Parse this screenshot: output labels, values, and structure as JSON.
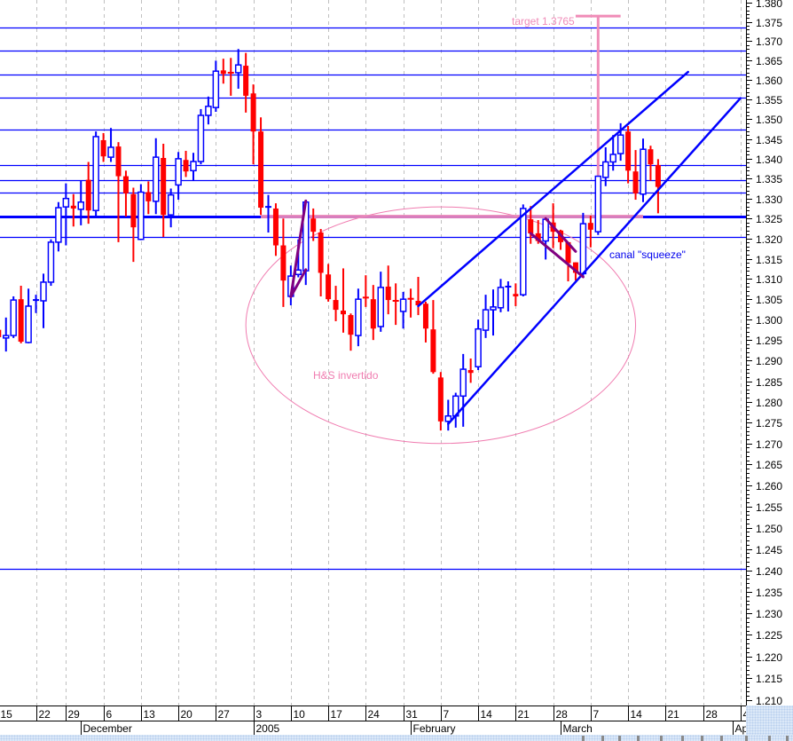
{
  "chart_data": {
    "type": "candlestick",
    "title": "",
    "xlabel": "",
    "ylabel": "",
    "yscale": "log",
    "ylim": [
      1.21,
      1.38
    ],
    "y_tick_step": 0.005,
    "y_minor_tick_step": 0.001,
    "grid": {
      "vertical_weekly_dashed": true,
      "horizontal": false
    },
    "colors": {
      "up": "#0000ff",
      "down": "#ff0000",
      "levels": "#0000ff",
      "annotation_pink": "#f08cb8",
      "annotation_purple": "#800080",
      "grid": "#c0c0c0"
    },
    "candle_fields": [
      "date",
      "open",
      "high",
      "low",
      "close"
    ],
    "candles": [
      [
        "2004-11-15",
        1.2975,
        1.2985,
        1.295,
        1.2957
      ],
      [
        "2004-11-16",
        1.2955,
        1.3005,
        1.2922,
        1.2961
      ],
      [
        "2004-11-17",
        1.2961,
        1.3057,
        1.2955,
        1.3048
      ],
      [
        "2004-11-18",
        1.305,
        1.3083,
        1.2942,
        1.2946
      ],
      [
        "2004-11-19",
        1.2944,
        1.3076,
        1.2942,
        1.3033
      ],
      [
        "2004-11-22",
        1.3046,
        1.3061,
        1.3016,
        1.3048
      ],
      [
        "2004-11-23",
        1.3046,
        1.3113,
        1.2979,
        1.3092
      ],
      [
        "2004-11-24",
        1.3092,
        1.3198,
        1.3083,
        1.3191
      ],
      [
        "2004-11-26",
        1.3191,
        1.3291,
        1.3168,
        1.3277
      ],
      [
        "2004-11-29",
        1.3279,
        1.3338,
        1.3183,
        1.33
      ],
      [
        "2004-11-30",
        1.3282,
        1.3311,
        1.323,
        1.3275
      ],
      [
        "2004-12-01",
        1.3273,
        1.3345,
        1.3233,
        1.3291
      ],
      [
        "2004-12-02",
        1.3347,
        1.3392,
        1.3237,
        1.327
      ],
      [
        "2004-12-03",
        1.327,
        1.3469,
        1.3255,
        1.3456
      ],
      [
        "2004-12-06",
        1.3447,
        1.3465,
        1.3392,
        1.3406
      ],
      [
        "2004-12-07",
        1.3404,
        1.3478,
        1.3392,
        1.3429
      ],
      [
        "2004-12-08",
        1.3431,
        1.3442,
        1.3191,
        1.3356
      ],
      [
        "2004-12-09",
        1.3356,
        1.337,
        1.3255,
        1.3313
      ],
      [
        "2004-12-10",
        1.3311,
        1.3327,
        1.3142,
        1.3228
      ],
      [
        "2004-12-13",
        1.3198,
        1.3336,
        1.3196,
        1.3316
      ],
      [
        "2004-12-14",
        1.3316,
        1.3343,
        1.3261,
        1.3293
      ],
      [
        "2004-12-15",
        1.3293,
        1.3452,
        1.3261,
        1.3404
      ],
      [
        "2004-12-16",
        1.3402,
        1.3438,
        1.3204,
        1.3259
      ],
      [
        "2004-12-17",
        1.3259,
        1.3325,
        1.3228,
        1.3309
      ],
      [
        "2004-12-20",
        1.3334,
        1.3417,
        1.3297,
        1.34
      ],
      [
        "2004-12-21",
        1.3397,
        1.342,
        1.3354,
        1.3368
      ],
      [
        "2004-12-22",
        1.337,
        1.3415,
        1.3345,
        1.3393
      ],
      [
        "2004-12-23",
        1.3393,
        1.3526,
        1.3386,
        1.351
      ],
      [
        "2004-12-24",
        1.351,
        1.3558,
        1.3487,
        1.3533
      ],
      [
        "2004-12-27",
        1.353,
        1.365,
        1.3519,
        1.3623
      ],
      [
        "2004-12-28",
        1.3625,
        1.3655,
        1.3591,
        1.3616
      ],
      [
        "2004-12-29",
        1.3619,
        1.3657,
        1.356,
        1.3617
      ],
      [
        "2004-12-30",
        1.3619,
        1.368,
        1.3578,
        1.3639
      ],
      [
        "2004-12-31",
        1.3637,
        1.367,
        1.3517,
        1.356
      ],
      [
        "2005-01-03",
        1.3566,
        1.3589,
        1.3386,
        1.3469
      ],
      [
        "2005-01-04",
        1.3469,
        1.3505,
        1.3259,
        1.3277
      ],
      [
        "2005-01-05",
        1.3275,
        1.3309,
        1.3215,
        1.3279
      ],
      [
        "2005-01-06",
        1.3275,
        1.3288,
        1.3157,
        1.3183
      ],
      [
        "2005-01-07",
        1.3183,
        1.325,
        1.3031,
        1.3096
      ],
      [
        "2005-01-10",
        1.3057,
        1.3133,
        1.3035,
        1.3107
      ],
      [
        "2005-01-11",
        1.3111,
        1.3198,
        1.3104,
        1.3122
      ],
      [
        "2005-01-12",
        1.312,
        1.3297,
        1.3085,
        1.3291
      ],
      [
        "2005-01-13",
        1.325,
        1.3275,
        1.3194,
        1.3217
      ],
      [
        "2005-01-14",
        1.3215,
        1.3224,
        1.3057,
        1.3115
      ],
      [
        "2005-01-17",
        1.3111,
        1.3137,
        1.3044,
        1.305
      ],
      [
        "2005-01-18",
        1.3048,
        1.3083,
        1.2996,
        1.3024
      ],
      [
        "2005-01-19",
        1.3022,
        1.3126,
        1.2968,
        1.3013
      ],
      [
        "2005-01-20",
        1.3011,
        1.3015,
        1.2924,
        1.2963
      ],
      [
        "2005-01-21",
        1.2961,
        1.3076,
        1.2935,
        1.305
      ],
      [
        "2005-01-24",
        1.3054,
        1.3109,
        1.3031,
        1.3052
      ],
      [
        "2005-01-25",
        1.305,
        1.3085,
        1.295,
        1.2978
      ],
      [
        "2005-01-26",
        1.2983,
        1.3118,
        1.297,
        1.3079
      ],
      [
        "2005-01-27",
        1.3081,
        1.3133,
        1.3013,
        1.3048
      ],
      [
        "2005-01-28",
        1.3046,
        1.3089,
        1.2987,
        1.3044
      ],
      [
        "2005-01-31",
        1.302,
        1.3068,
        1.2978,
        1.305
      ],
      [
        "2005-02-01",
        1.3051,
        1.3076,
        1.3005,
        1.305
      ],
      [
        "2005-02-02",
        1.3046,
        1.3105,
        1.3011,
        1.3035
      ],
      [
        "2005-02-03",
        1.3039,
        1.3044,
        1.2944,
        1.2978
      ],
      [
        "2005-02-04",
        1.2976,
        1.3048,
        1.2868,
        1.2872
      ],
      [
        "2005-02-07",
        1.2859,
        1.2872,
        1.2731,
        1.2753
      ],
      [
        "2005-02-08",
        1.2753,
        1.2805,
        1.2731,
        1.2766
      ],
      [
        "2005-02-09",
        1.2766,
        1.2822,
        1.2738,
        1.2814
      ],
      [
        "2005-02-10",
        1.2814,
        1.2916,
        1.274,
        1.2879
      ],
      [
        "2005-02-11",
        1.2877,
        1.2905,
        1.2846,
        1.287
      ],
      [
        "2005-02-14",
        1.2885,
        1.3,
        1.2877,
        1.2977
      ],
      [
        "2005-02-15",
        1.2974,
        1.3061,
        1.2955,
        1.3024
      ],
      [
        "2005-02-16",
        1.3024,
        1.3074,
        1.2961,
        1.3031
      ],
      [
        "2005-02-17",
        1.3029,
        1.31,
        1.3018,
        1.3079
      ],
      [
        "2005-02-18",
        1.308,
        1.3094,
        1.302,
        1.3081
      ],
      [
        "2005-02-21",
        1.3063,
        1.3089,
        1.3033,
        1.3057
      ],
      [
        "2005-02-22",
        1.3061,
        1.3285,
        1.3057,
        1.3275
      ],
      [
        "2005-02-23",
        1.3248,
        1.3281,
        1.3187,
        1.3213
      ],
      [
        "2005-02-24",
        1.3213,
        1.3246,
        1.3187,
        1.3194
      ],
      [
        "2005-02-25",
        1.3194,
        1.3252,
        1.3148,
        1.3248
      ],
      [
        "2005-02-28",
        1.324,
        1.3288,
        1.3176,
        1.3217
      ],
      [
        "2005-03-01",
        1.322,
        1.3222,
        1.3172,
        1.3191
      ],
      [
        "2005-03-02",
        1.3191,
        1.3191,
        1.3094,
        1.3139
      ],
      [
        "2005-03-03",
        1.3141,
        1.3141,
        1.3096,
        1.3115
      ],
      [
        "2005-03-04",
        1.3113,
        1.3264,
        1.3104,
        1.3237
      ],
      [
        "2005-03-07",
        1.3239,
        1.3257,
        1.3178,
        1.3222
      ],
      [
        "2005-03-08",
        1.3217,
        1.3356,
        1.3209,
        1.3356
      ],
      [
        "2005-03-09",
        1.3353,
        1.3429,
        1.3331,
        1.3392
      ],
      [
        "2005-03-10",
        1.3392,
        1.346,
        1.337,
        1.3411
      ],
      [
        "2005-03-11",
        1.3413,
        1.349,
        1.3395,
        1.346
      ],
      [
        "2005-03-14",
        1.3469,
        1.3483,
        1.3338,
        1.337
      ],
      [
        "2005-03-15",
        1.3368,
        1.3422,
        1.3297,
        1.3313
      ],
      [
        "2005-03-16",
        1.3311,
        1.3451,
        1.3291,
        1.3424
      ],
      [
        "2005-03-17",
        1.3424,
        1.3433,
        1.3345,
        1.3386
      ],
      [
        "2005-03-18",
        1.3384,
        1.3399,
        1.3263,
        1.3329
      ]
    ],
    "x_ticks": [
      {
        "label": "15",
        "date": "2004-11-15"
      },
      {
        "label": "22",
        "date": "2004-11-22"
      },
      {
        "label": "29",
        "date": "2004-11-29"
      },
      {
        "label": "6",
        "date": "2004-12-06"
      },
      {
        "label": "13",
        "date": "2004-12-13"
      },
      {
        "label": "20",
        "date": "2004-12-20"
      },
      {
        "label": "27",
        "date": "2004-12-27"
      },
      {
        "label": "3",
        "date": "2005-01-03"
      },
      {
        "label": "10",
        "date": "2005-01-10"
      },
      {
        "label": "17",
        "date": "2005-01-17"
      },
      {
        "label": "24",
        "date": "2005-01-24"
      },
      {
        "label": "31",
        "date": "2005-01-31"
      },
      {
        "label": "7",
        "date": "2005-02-07"
      },
      {
        "label": "14",
        "date": "2005-02-14"
      },
      {
        "label": "21",
        "date": "2005-02-21"
      },
      {
        "label": "28",
        "date": "2005-02-28"
      },
      {
        "label": "7",
        "date": "2005-03-07"
      },
      {
        "label": "14",
        "date": "2005-03-14"
      },
      {
        "label": "21",
        "date": "2005-03-21"
      },
      {
        "label": "28",
        "date": "2005-03-28"
      },
      {
        "label": "4",
        "date": "2005-04-04"
      }
    ],
    "x_month_labels": [
      {
        "label": "December",
        "date": "2004-12-01"
      },
      {
        "label": "2005",
        "date": "2005-01-03"
      },
      {
        "label": "February",
        "date": "2005-02-01"
      },
      {
        "label": "March",
        "date": "2005-03-01"
      },
      {
        "label": "Ap",
        "date": "2005-04-01"
      }
    ],
    "horizontal_levels": [
      1.3735,
      1.3675,
      1.3615,
      1.3555,
      1.3475,
      1.3385,
      1.3345,
      1.3315,
      1.3255,
      1.3205,
      1.2403
    ],
    "neckline_level": 1.3255,
    "annotations": {
      "neckline": {
        "from": "2005-01-04",
        "to": "2005-03-16",
        "price": 1.3255
      },
      "target": {
        "label": "target 1.3765",
        "date": "2005-03-08",
        "from_price": 1.3255,
        "price": 1.3765,
        "cap_from": "2005-03-03",
        "cap_to": "2005-03-11"
      },
      "hs_ellipse": {
        "label": "H&S invertido",
        "from": "2004-12-31",
        "to": "2005-03-15",
        "price_top": 1.3279,
        "price_bottom": 1.27
      },
      "channel": {
        "label": "canal \"squeeze\"",
        "upper": [
          [
            "2005-02-02",
            1.3033
          ],
          [
            "2005-03-24",
            1.3621
          ]
        ],
        "lower": [
          [
            "2005-02-08",
            1.2747
          ],
          [
            "2005-04-04",
            1.3554
          ]
        ]
      },
      "flag_january": [
        [
          [
            "2005-01-10",
            1.3056
          ],
          [
            "2005-01-12",
            1.3294
          ]
        ],
        [
          [
            "2005-01-10",
            1.3056
          ],
          [
            "2005-01-12",
            1.3123
          ]
        ]
      ],
      "flag_february": [
        [
          [
            "2005-02-25",
            1.325
          ],
          [
            "2005-03-03",
            1.3168
          ]
        ],
        [
          [
            "2005-02-23",
            1.3213
          ],
          [
            "2005-03-04",
            1.3105
          ]
        ]
      ]
    }
  }
}
